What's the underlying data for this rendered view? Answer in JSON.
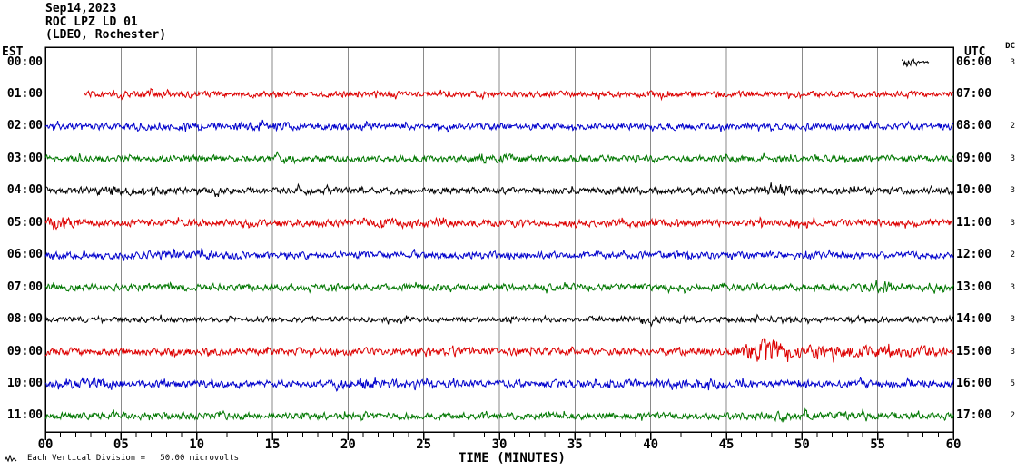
{
  "header": {
    "date_line": "Sep14,2023",
    "station_line": "ROC LPZ LD 01",
    "location_line": "(LDEO, Rochester)"
  },
  "columns": {
    "left_header": "EST",
    "right_header": "UTC",
    "dc_header": "DC"
  },
  "x_axis": {
    "title": "TIME (MINUTES)",
    "tick_labels": [
      "00",
      "05",
      "10",
      "15",
      "20",
      "25",
      "30",
      "35",
      "40",
      "45",
      "50",
      "55",
      "60"
    ],
    "range_minutes": [
      0,
      60
    ],
    "major_tick_minutes": 5,
    "minor_tick_minutes": 1
  },
  "footer": {
    "scale_note": "Each Vertical Division =   50.00 microvolts"
  },
  "colors": {
    "background": "#ffffff",
    "frame": "#000000",
    "grid": "#8a8a8a",
    "text": "#000000",
    "trace_black": "#000000",
    "trace_red": "#dd0000",
    "trace_blue": "#0000cc",
    "trace_green": "#007700"
  },
  "chart_data": {
    "type": "line",
    "subtype": "helicorder-seismogram",
    "minutes_per_line": 60,
    "grid": "vertical lines every 5 minutes",
    "rows": [
      {
        "est": "00:00",
        "utc": "06:00",
        "dc": "3",
        "color": "#000000",
        "start_min": 56.6,
        "end_min": 58.4,
        "amp": 1.4,
        "events": [
          {
            "center": 57.0,
            "sigma": 0.3,
            "gain": 3.2
          }
        ]
      },
      {
        "est": "01:00",
        "utc": "07:00",
        "dc": "",
        "color": "#dd0000",
        "start_min": 2.6,
        "end_min": 60,
        "amp": 3.4,
        "events": [
          {
            "center": 6,
            "sigma": 2,
            "gain": 0.3
          }
        ]
      },
      {
        "est": "02:00",
        "utc": "08:00",
        "dc": "2",
        "color": "#0000cc",
        "start_min": 0,
        "end_min": 60,
        "amp": 3.8,
        "events": [
          {
            "center": 14,
            "sigma": 1.5,
            "gain": 0.4
          }
        ]
      },
      {
        "est": "03:00",
        "utc": "09:00",
        "dc": "3",
        "color": "#007700",
        "start_min": 0,
        "end_min": 60,
        "amp": 3.8,
        "events": [
          {
            "center": 30,
            "sigma": 2,
            "gain": 0.3
          }
        ]
      },
      {
        "est": "04:00",
        "utc": "10:00",
        "dc": "3",
        "color": "#000000",
        "start_min": 0,
        "end_min": 60,
        "amp": 4.0,
        "events": [
          {
            "center": 5,
            "sigma": 1.5,
            "gain": 0.4
          },
          {
            "center": 48.6,
            "sigma": 0.8,
            "gain": 0.9
          }
        ]
      },
      {
        "est": "05:00",
        "utc": "11:00",
        "dc": "3",
        "color": "#dd0000",
        "start_min": 0,
        "end_min": 60,
        "amp": 4.2,
        "events": [
          {
            "center": 0.8,
            "sigma": 0.8,
            "gain": 0.9
          },
          {
            "center": 24,
            "sigma": 2,
            "gain": 0.3
          }
        ]
      },
      {
        "est": "06:00",
        "utc": "12:00",
        "dc": "2",
        "color": "#0000cc",
        "start_min": 0,
        "end_min": 60,
        "amp": 4.0,
        "events": [
          {
            "center": 10,
            "sigma": 2,
            "gain": 0.35
          }
        ]
      },
      {
        "est": "07:00",
        "utc": "13:00",
        "dc": "3",
        "color": "#007700",
        "start_min": 0,
        "end_min": 60,
        "amp": 4.0,
        "events": [
          {
            "center": 55.6,
            "sigma": 0.7,
            "gain": 0.9
          }
        ]
      },
      {
        "est": "08:00",
        "utc": "14:00",
        "dc": "3",
        "color": "#000000",
        "start_min": 0,
        "end_min": 60,
        "amp": 3.2,
        "events": [
          {
            "center": 40,
            "sigma": 2,
            "gain": 0.3
          }
        ]
      },
      {
        "est": "09:00",
        "utc": "15:00",
        "dc": "3",
        "color": "#dd0000",
        "start_min": 0,
        "end_min": 60,
        "amp": 4.2,
        "events": [
          {
            "center": 47.7,
            "sigma": 1.1,
            "gain": 2.4
          },
          {
            "center": 52.5,
            "sigma": 2.2,
            "gain": 0.9
          },
          {
            "center": 57.5,
            "sigma": 1.2,
            "gain": 0.6
          }
        ]
      },
      {
        "est": "10:00",
        "utc": "16:00",
        "dc": "5",
        "color": "#0000cc",
        "start_min": 0,
        "end_min": 60,
        "amp": 4.4,
        "events": [
          {
            "center": 3,
            "sigma": 1,
            "gain": 0.5
          },
          {
            "center": 21,
            "sigma": 1.2,
            "gain": 0.5
          },
          {
            "center": 44,
            "sigma": 1.5,
            "gain": 0.4
          }
        ]
      },
      {
        "est": "11:00",
        "utc": "17:00",
        "dc": "2",
        "color": "#007700",
        "start_min": 0,
        "end_min": 60,
        "amp": 4.0,
        "events": [
          {
            "center": 50,
            "sigma": 1.5,
            "gain": 0.4
          }
        ]
      }
    ]
  }
}
